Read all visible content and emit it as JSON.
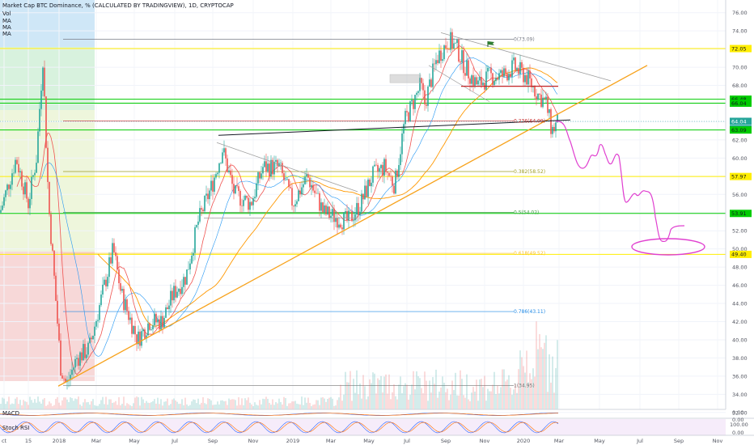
{
  "chart_data": {
    "type": "candlestick",
    "title": "Market Cap BTC Dominance, % (CALCULATED BY TRADINGVIEW), 1D, CRYPTOCAP",
    "indicators": [
      "Vol",
      "MA",
      "MA",
      "MA"
    ],
    "x_ticks": [
      "ct",
      "15",
      "2018",
      "Mar",
      "May",
      "Jul",
      "Sep",
      "Nov",
      "2019",
      "Mar",
      "May",
      "Jul",
      "Sep",
      "Nov",
      "2020",
      "Mar",
      "May",
      "Jul",
      "Sep",
      "Nov"
    ],
    "y_ticks": [
      76.0,
      74.0,
      72.0,
      70.0,
      68.0,
      66.0,
      64.0,
      62.0,
      60.0,
      58.0,
      56.0,
      54.0,
      52.0,
      50.0,
      48.0,
      46.0,
      44.0,
      42.0,
      40.0,
      38.0,
      36.0,
      34.0,
      32.0
    ],
    "ylim": [
      31.5,
      77.0
    ],
    "series": [
      {
        "name": "BTC Dominance close",
        "x": [
          "2017-10",
          "2017-11",
          "2017-12",
          "2018-01",
          "2018-02",
          "2018-03",
          "2018-04",
          "2018-05",
          "2018-06",
          "2018-07",
          "2018-08",
          "2018-09",
          "2018-10",
          "2018-11",
          "2018-12",
          "2019-01",
          "2019-02",
          "2019-03",
          "2019-04",
          "2019-05",
          "2019-06",
          "2019-07",
          "2019-08",
          "2019-09",
          "2019-10",
          "2019-11",
          "2019-12",
          "2020-01",
          "2020-02",
          "2020-03"
        ],
        "values": [
          54,
          62,
          58,
          35,
          37,
          44,
          47,
          38,
          41,
          44,
          50,
          57,
          55,
          57,
          55,
          53,
          53,
          53,
          53,
          58,
          60,
          64,
          70,
          71,
          67,
          67,
          68,
          66,
          63,
          64
        ]
      }
    ],
    "horizontal_levels": [
      {
        "label": "72.05",
        "value": 72.05,
        "color": "#ffee00"
      },
      {
        "label": "66.48",
        "value": 66.48,
        "color": "#00cc00"
      },
      {
        "label": "66.04",
        "value": 66.04,
        "color": "#00cc00"
      },
      {
        "label": "64.04",
        "value": 64.04,
        "color": "#26a69a"
      },
      {
        "label": "15:08:32",
        "value": 63.2,
        "color": "#26a69a"
      },
      {
        "label": "63.09",
        "value": 63.09,
        "color": "#00cc00"
      },
      {
        "label": "57.97",
        "value": 57.97,
        "color": "#ffee00"
      },
      {
        "label": "53.91",
        "value": 53.91,
        "color": "#00cc00"
      },
      {
        "label": "49.40",
        "value": 49.4,
        "color": "#ffee00"
      }
    ],
    "fib_levels": [
      {
        "label": "0(73.09)",
        "value": 73.09
      },
      {
        "label": "0.236(64.09)",
        "value": 64.09
      },
      {
        "label": "0.382(58.52)",
        "value": 58.52
      },
      {
        "label": "0.5(54.02)",
        "value": 54.02
      },
      {
        "label": "0.618(49.52)",
        "value": 49.52
      },
      {
        "label": "0.786(43.11)",
        "value": 43.11
      },
      {
        "label": "1(34.95)",
        "value": 34.95
      }
    ],
    "lower_panels": [
      {
        "name": "MACD",
        "values": [
          "0.00",
          "0.00"
        ]
      },
      {
        "name": "Stoch RSI",
        "values": [
          "100.00",
          "0.00"
        ]
      }
    ]
  }
}
